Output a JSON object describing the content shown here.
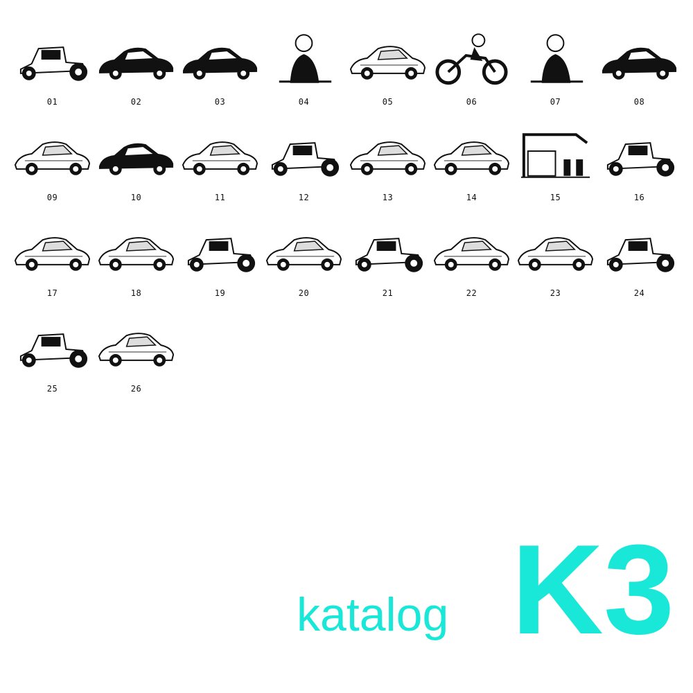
{
  "catalog": {
    "title": "katalog",
    "code": "K3",
    "accent_color": "#19e8d8",
    "items": [
      {
        "number": "01",
        "icon": "hotrod-dragster-icon"
      },
      {
        "number": "02",
        "icon": "lowrider-sedan-icon"
      },
      {
        "number": "03",
        "icon": "coupe-icon"
      },
      {
        "number": "04",
        "icon": "skeleton-rider-icon"
      },
      {
        "number": "05",
        "icon": "pickup-truck-icon"
      },
      {
        "number": "06",
        "icon": "chopper-motorcycle-icon"
      },
      {
        "number": "07",
        "icon": "mechanic-with-tires-icon"
      },
      {
        "number": "08",
        "icon": "lead-sled-icon"
      },
      {
        "number": "09",
        "icon": "streamliner-icon"
      },
      {
        "number": "10",
        "icon": "car-on-cloud-icon"
      },
      {
        "number": "11",
        "icon": "custom-cruiser-icon"
      },
      {
        "number": "12",
        "icon": "hotrod-roadster-icon"
      },
      {
        "number": "13",
        "icon": "convertible-icon"
      },
      {
        "number": "14",
        "icon": "flame-truck-icon"
      },
      {
        "number": "15",
        "icon": "gas-station-icon"
      },
      {
        "number": "16",
        "icon": "ratrod-coupe-icon"
      },
      {
        "number": "17",
        "icon": "sedan-delivery-icon"
      },
      {
        "number": "18",
        "icon": "custom-merc-icon"
      },
      {
        "number": "19",
        "icon": "three-window-coupe-icon"
      },
      {
        "number": "20",
        "icon": "fifties-sedan-icon"
      },
      {
        "number": "21",
        "icon": "hiboy-roadster-icon"
      },
      {
        "number": "22",
        "icon": "speed-coupe-icon"
      },
      {
        "number": "23",
        "icon": "woody-wagon-icon"
      },
      {
        "number": "24",
        "icon": "model-a-hotrod-icon"
      },
      {
        "number": "25",
        "icon": "tudor-hotrod-icon"
      },
      {
        "number": "26",
        "icon": "flaming-cars-icon"
      }
    ]
  }
}
